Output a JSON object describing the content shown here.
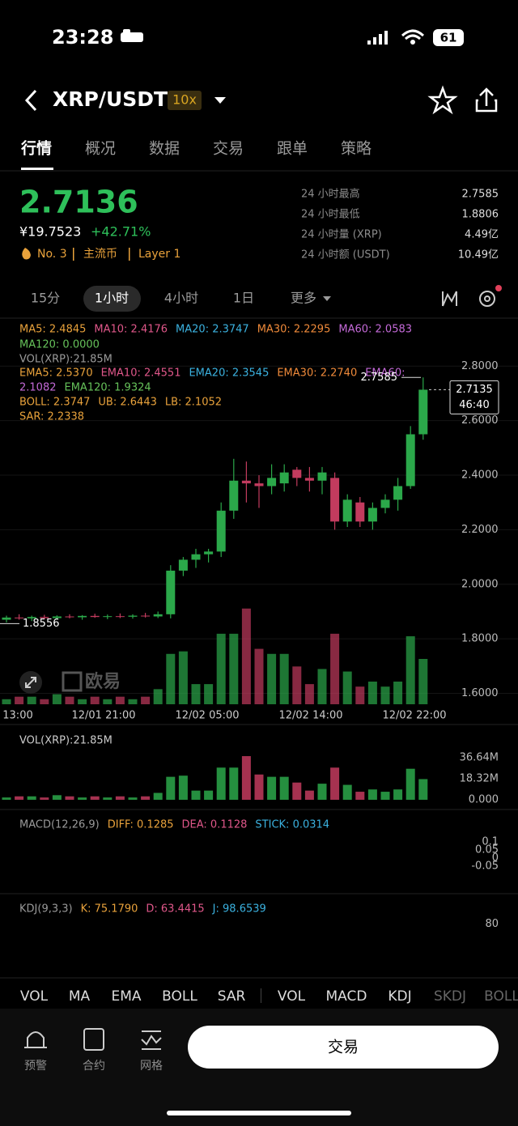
{
  "status": {
    "time": "23:28",
    "battery": "61"
  },
  "header": {
    "pair": "XRP/USDT",
    "leverage": "10x"
  },
  "tabs": [
    "行情",
    "概况",
    "数据",
    "交易",
    "跟单",
    "策略"
  ],
  "price": {
    "last": "2.7136",
    "cny": "¥19.7523",
    "change": "+42.71%",
    "rank": "No. 3",
    "tag1": "主流币",
    "tag2": "Layer 1"
  },
  "stats": [
    {
      "label": "24 小时最高",
      "value": "2.7585"
    },
    {
      "label": "24 小时最低",
      "value": "1.8806"
    },
    {
      "label": "24 小时量 (XRP)",
      "value": "4.49亿"
    },
    {
      "label": "24 小时额 (USDT)",
      "value": "10.49亿"
    }
  ],
  "timeframes": [
    "15分",
    "1小时",
    "4小时",
    "1日",
    "更多"
  ],
  "indicator_rows": [
    [
      {
        "text": "MA5: 2.4845",
        "color": "#e9a23b"
      },
      {
        "text": "MA10: 2.4176",
        "color": "#e0578a"
      },
      {
        "text": "MA20: 2.3747",
        "color": "#3bb2e0"
      },
      {
        "text": "MA30: 2.2295",
        "color": "#ef8a3a"
      },
      {
        "text": "MA60: 2.0583",
        "color": "#c46ad8"
      }
    ],
    [
      {
        "text": "MA120: 0.0000",
        "color": "#66c25a"
      }
    ],
    [
      {
        "text": "VOL(XRP):21.85M",
        "color": "#9a9a9a"
      }
    ],
    [
      {
        "text": "EMA5: 2.5370",
        "color": "#e9a23b"
      },
      {
        "text": "EMA10: 2.4551",
        "color": "#e0578a"
      },
      {
        "text": "EMA20: 2.3545",
        "color": "#3bb2e0"
      },
      {
        "text": "EMA30: 2.2740",
        "color": "#ef8a3a"
      },
      {
        "text": "EMA60:",
        "color": "#c46ad8"
      }
    ],
    [
      {
        "text": "2.1082",
        "color": "#c46ad8"
      },
      {
        "text": "EMA120: 1.9324",
        "color": "#66c25a"
      }
    ],
    [
      {
        "text": "BOLL: 2.3747",
        "color": "#e9a23b"
      },
      {
        "text": "UB: 2.6443",
        "color": "#e9a23b"
      },
      {
        "text": "LB: 2.1052",
        "color": "#e9a23b"
      }
    ],
    [
      {
        "text": "SAR: 2.2338",
        "color": "#e9a23b"
      }
    ]
  ],
  "vol_label": "VOL(XRP):21.85M",
  "macd_row": [
    {
      "text": "MACD(12,26,9)",
      "color": "#9a9a9a"
    },
    {
      "text": "DIFF: 0.1285",
      "color": "#e9a23b"
    },
    {
      "text": "DEA: 0.1128",
      "color": "#e0578a"
    },
    {
      "text": "STICK: 0.0314",
      "color": "#3bb2e0"
    }
  ],
  "kdj_row": [
    {
      "text": "KDJ(9,3,3)",
      "color": "#9a9a9a"
    },
    {
      "text": "K: 75.1790",
      "color": "#e9a23b"
    },
    {
      "text": "D: 63.4415",
      "color": "#e0578a"
    },
    {
      "text": "J: 98.6539",
      "color": "#3bb2e0"
    }
  ],
  "chart_data": {
    "type": "candlestick",
    "up_color": "#2ba84a",
    "down_color": "#c23b5e",
    "open": [
      1.87,
      1.878,
      1.875,
      1.88,
      1.876,
      1.882,
      1.879,
      1.884,
      1.88,
      1.883,
      1.881,
      1.885,
      1.882,
      1.89,
      2.05,
      2.09,
      2.11,
      2.12,
      2.27,
      2.38,
      2.37,
      2.36,
      2.37,
      2.42,
      2.39,
      2.38,
      2.39,
      2.23,
      2.3,
      2.23,
      2.28,
      2.31,
      2.36,
      2.55
    ],
    "high": [
      1.885,
      1.89,
      1.885,
      1.888,
      1.886,
      1.89,
      1.887,
      1.892,
      1.889,
      1.893,
      1.89,
      1.895,
      1.9,
      2.07,
      2.1,
      2.13,
      2.13,
      2.3,
      2.46,
      2.45,
      2.4,
      2.44,
      2.44,
      2.43,
      2.43,
      2.43,
      2.41,
      2.33,
      2.32,
      2.3,
      2.33,
      2.39,
      2.58,
      2.7585
    ],
    "low": [
      1.86,
      1.87,
      1.865,
      1.872,
      1.87,
      1.875,
      1.87,
      1.877,
      1.872,
      1.876,
      1.874,
      1.878,
      1.876,
      1.875,
      2.03,
      2.06,
      2.08,
      2.1,
      2.24,
      2.3,
      2.28,
      2.33,
      2.34,
      2.36,
      2.34,
      2.33,
      2.2,
      2.21,
      2.21,
      2.2,
      2.26,
      2.27,
      2.35,
      2.53
    ],
    "close": [
      1.878,
      1.875,
      1.88,
      1.876,
      1.882,
      1.879,
      1.884,
      1.88,
      1.883,
      1.881,
      1.885,
      1.882,
      1.89,
      2.05,
      2.09,
      2.11,
      2.12,
      2.27,
      2.38,
      2.37,
      2.36,
      2.39,
      2.41,
      2.39,
      2.38,
      2.41,
      2.23,
      2.31,
      2.23,
      2.28,
      2.31,
      2.36,
      2.55,
      2.7135
    ],
    "volume": [
      2,
      3,
      3,
      2,
      4,
      3,
      2,
      3,
      2,
      3,
      2,
      3,
      6,
      20,
      21,
      8,
      8,
      28,
      28,
      38,
      22,
      20,
      20,
      15,
      8,
      14,
      28,
      13,
      7,
      9,
      7,
      9,
      27,
      18
    ],
    "ylim": [
      1.56,
      2.97
    ],
    "yticks": [
      {
        "value": 2.8,
        "label": "2.8000"
      },
      {
        "value": 2.6,
        "label": "2.6000"
      },
      {
        "value": 2.4,
        "label": "2.4000"
      },
      {
        "value": 2.2,
        "label": "2.2000"
      },
      {
        "value": 2.0,
        "label": "2.0000"
      },
      {
        "value": 1.8,
        "label": "1.8000"
      },
      {
        "value": 1.6,
        "label": "1.6000"
      }
    ],
    "x_labels": [
      "13:00",
      "12/01 21:00",
      "12/02 05:00",
      "12/02 14:00",
      "12/02 22:00"
    ],
    "high_label": {
      "value": 2.7585,
      "label": "2.7585"
    },
    "low_label": {
      "value": 1.8556,
      "label": "1.8556"
    },
    "current": {
      "value": 2.7135,
      "label": "2.7135",
      "countdown": "46:40"
    },
    "vol_ylim": [
      0,
      36.64
    ],
    "vol_yticks": [
      {
        "value": 36.64,
        "label": "36.64M"
      },
      {
        "value": 18.32,
        "label": "18.32M"
      },
      {
        "value": 0,
        "label": "0.000"
      }
    ],
    "macd_ylim": [
      -0.2,
      0.25
    ],
    "macd_yticks": [
      0.1,
      0.05,
      0,
      -0.05
    ],
    "kdj_ylim": [
      -20,
      130
    ],
    "kdj_yticks": [
      80
    ]
  },
  "indicator_tabs": [
    "VOL",
    "MA",
    "EMA",
    "BOLL",
    "SAR",
    "VOL",
    "MACD",
    "KDJ",
    "SKDJ",
    "BOLL"
  ],
  "bottom_bar": {
    "alert": "预警",
    "contract": "合约",
    "grid": "网格",
    "trade": "交易"
  }
}
